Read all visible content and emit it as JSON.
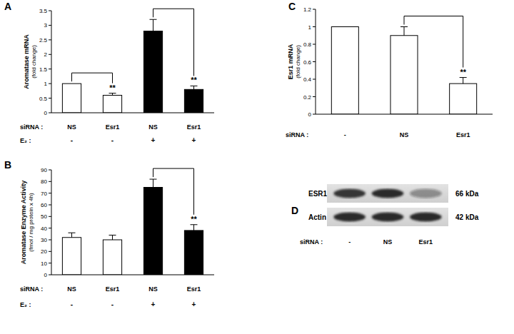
{
  "chart_data": [
    {
      "type": "bar",
      "title": "A",
      "ylabel": [
        "Aromatase mRNA",
        "(fold change)"
      ],
      "categories": [
        "NS",
        "Esr1",
        "NS",
        "Esr1"
      ],
      "category_label": "siRNA :",
      "categories2": [
        "-",
        "-",
        "+",
        "+"
      ],
      "category2_label": "E₂ :",
      "values": [
        1,
        0.6,
        2.8,
        0.8
      ],
      "errors": [
        null,
        0.07,
        0.4,
        0.12
      ],
      "colors": [
        "#ffffff",
        "#ffffff",
        "#000000",
        "#000000"
      ],
      "ylim": [
        0,
        3.5
      ],
      "yticks": [
        0,
        0.5,
        1,
        1.5,
        2,
        2.5,
        3,
        3.5
      ],
      "grid": false,
      "significance": [
        {
          "from": 0,
          "to": 1,
          "label": "**"
        },
        {
          "from": 2,
          "to": 3,
          "label": "**"
        }
      ]
    },
    {
      "type": "bar",
      "title": "B",
      "ylabel": [
        "Aromatase Enzyme Activity",
        "(fmol / mg protein x 4h)"
      ],
      "categories": [
        "NS",
        "Esr1",
        "NS",
        "Esr1"
      ],
      "category_label": "siRNA :",
      "categories2": [
        "-",
        "-",
        "+",
        "+"
      ],
      "category2_label": "E₂ :",
      "values": [
        32,
        30,
        75,
        38
      ],
      "errors": [
        4,
        4,
        7,
        5
      ],
      "colors": [
        "#ffffff",
        "#ffffff",
        "#000000",
        "#000000"
      ],
      "ylim": [
        0,
        90
      ],
      "yticks": [
        0,
        10,
        20,
        30,
        40,
        50,
        60,
        70,
        80,
        90
      ],
      "grid": false,
      "significance": [
        {
          "from": 2,
          "to": 3,
          "label": "**"
        }
      ]
    },
    {
      "type": "bar",
      "title": "C",
      "ylabel": [
        "Esr1 mRNA",
        "(fold change)"
      ],
      "categories": [
        "-",
        "NS",
        "Esr1"
      ],
      "category_label": "siRNA :",
      "values": [
        1,
        0.9,
        0.35
      ],
      "errors": [
        null,
        0.1,
        0.07
      ],
      "colors": [
        "#ffffff",
        "#ffffff",
        "#ffffff"
      ],
      "ylim": [
        0,
        1.2
      ],
      "yticks": [
        0,
        0.2,
        0.4,
        0.6,
        0.8,
        1,
        1.2
      ],
      "grid": false,
      "significance": [
        {
          "from": 1,
          "to": 2,
          "label": "**"
        }
      ]
    }
  ],
  "blot": {
    "title": "D",
    "rows": [
      {
        "name": "ESR1",
        "size": "66 kDa",
        "intensity": [
          0.85,
          0.9,
          0.4
        ]
      },
      {
        "name": "Actin",
        "size": "42 kDa",
        "intensity": [
          0.9,
          0.9,
          0.9
        ]
      }
    ],
    "lane_label": "siRNA :",
    "lanes": [
      "-",
      "NS",
      "Esr1"
    ]
  }
}
